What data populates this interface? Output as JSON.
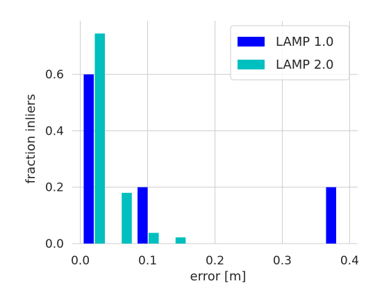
{
  "chart_data": {
    "type": "bar",
    "xlabel": "error [m]",
    "ylabel": "fraction inliers",
    "xlim": [
      -0.012,
      0.412
    ],
    "ylim": [
      0,
      0.79
    ],
    "xticks": [
      "0.0",
      "0.1",
      "0.2",
      "0.3",
      "0.4"
    ],
    "yticks": [
      "0.0",
      "0.2",
      "0.4",
      "0.6"
    ],
    "grid": true,
    "legend_position": "top-right",
    "bar_width": 0.015,
    "series": [
      {
        "name": "LAMP 1.0",
        "color": "#0000ff",
        "x": [
          0.0125,
          0.0925,
          0.3725
        ],
        "values": [
          0.6,
          0.2,
          0.2
        ]
      },
      {
        "name": "LAMP 2.0",
        "color": "#00bfbf",
        "x": [
          0.029,
          0.069,
          0.109,
          0.149
        ],
        "values": [
          0.745,
          0.18,
          0.038,
          0.022
        ]
      }
    ]
  }
}
